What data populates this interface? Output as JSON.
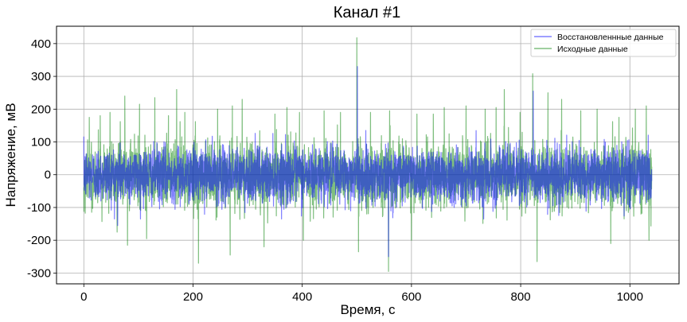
{
  "chart_data": {
    "type": "line",
    "title": "Канал #1",
    "xlabel": "Время, с",
    "ylabel": "Напряжение, мВ",
    "xlim": [
      -50,
      1090
    ],
    "ylim": [
      -333,
      453
    ],
    "x_ticks": [
      0,
      200,
      400,
      600,
      800,
      1000
    ],
    "y_ticks": [
      -300,
      -200,
      -100,
      0,
      100,
      200,
      300,
      400
    ],
    "grid": true,
    "legend_position": "top-right",
    "x_range": [
      0,
      1040
    ],
    "series": [
      {
        "name": "Восстановленнные данные",
        "color": "#0000ff",
        "alpha": 0.5,
        "typical_amplitude": 100,
        "peaks": [
          {
            "x": 62,
            "y": -155
          },
          {
            "x": 501,
            "y": 330
          },
          {
            "x": 558,
            "y": -250
          },
          {
            "x": 823,
            "y": 255
          }
        ]
      },
      {
        "name": "Исходные данные",
        "color": "#008000",
        "alpha": 0.5,
        "typical_amplitude": 120,
        "peaks": [
          {
            "x": 10,
            "y": 175
          },
          {
            "x": 30,
            "y": 180
          },
          {
            "x": 48,
            "y": 190
          },
          {
            "x": 61,
            "y": -175
          },
          {
            "x": 75,
            "y": 240
          },
          {
            "x": 80,
            "y": -215
          },
          {
            "x": 102,
            "y": 215
          },
          {
            "x": 115,
            "y": -195
          },
          {
            "x": 130,
            "y": 235
          },
          {
            "x": 155,
            "y": 180
          },
          {
            "x": 170,
            "y": 260
          },
          {
            "x": 185,
            "y": 190
          },
          {
            "x": 210,
            "y": -270
          },
          {
            "x": 245,
            "y": 200
          },
          {
            "x": 268,
            "y": -245
          },
          {
            "x": 272,
            "y": 210
          },
          {
            "x": 290,
            "y": 230
          },
          {
            "x": 330,
            "y": -220
          },
          {
            "x": 350,
            "y": 185
          },
          {
            "x": 372,
            "y": 205
          },
          {
            "x": 395,
            "y": 190
          },
          {
            "x": 402,
            "y": -200
          },
          {
            "x": 440,
            "y": 195
          },
          {
            "x": 470,
            "y": 190
          },
          {
            "x": 500,
            "y": 418
          },
          {
            "x": 503,
            "y": -235
          },
          {
            "x": 525,
            "y": 190
          },
          {
            "x": 558,
            "y": -295
          },
          {
            "x": 560,
            "y": 195
          },
          {
            "x": 600,
            "y": -200
          },
          {
            "x": 610,
            "y": 185
          },
          {
            "x": 640,
            "y": 185
          },
          {
            "x": 660,
            "y": 205
          },
          {
            "x": 700,
            "y": 210
          },
          {
            "x": 735,
            "y": 200
          },
          {
            "x": 755,
            "y": 205
          },
          {
            "x": 770,
            "y": 260
          },
          {
            "x": 799,
            "y": 190
          },
          {
            "x": 822,
            "y": 308
          },
          {
            "x": 830,
            "y": -265
          },
          {
            "x": 850,
            "y": 250
          },
          {
            "x": 875,
            "y": 230
          },
          {
            "x": 910,
            "y": 195
          },
          {
            "x": 940,
            "y": 200
          },
          {
            "x": 965,
            "y": -210
          },
          {
            "x": 980,
            "y": 175
          },
          {
            "x": 1010,
            "y": 200
          },
          {
            "x": 1030,
            "y": 210
          },
          {
            "x": 1035,
            "y": -200
          }
        ]
      }
    ]
  }
}
